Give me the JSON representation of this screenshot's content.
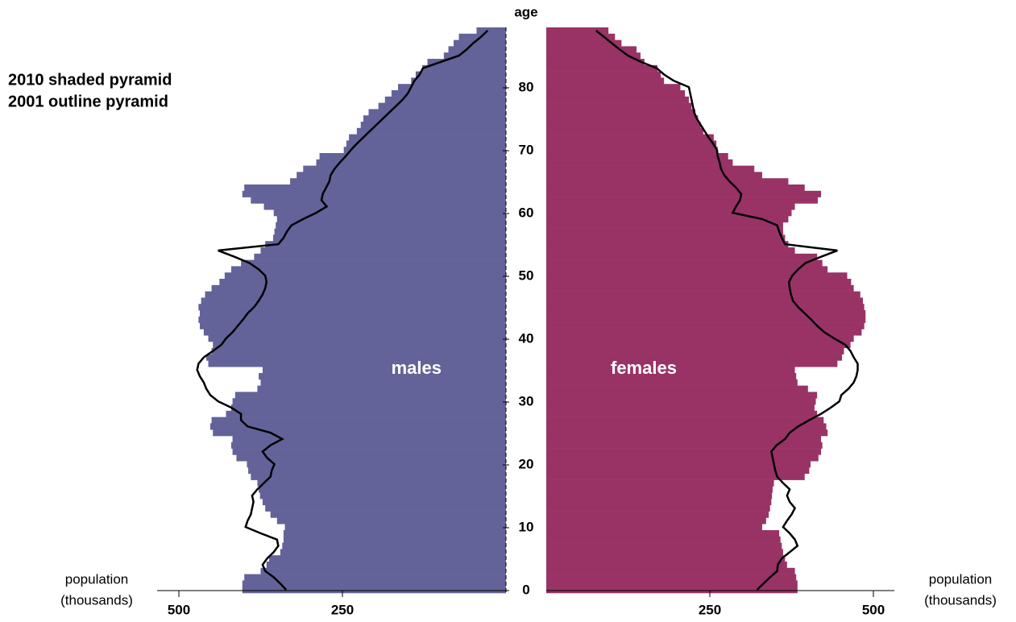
{
  "chart_data": {
    "type": "pyramid",
    "ylabel": "age",
    "legend": [
      "2010 shaded pyramid",
      "2001 outline pyramid"
    ],
    "xlabel_lines": [
      "population",
      "(thousands)"
    ],
    "ages": [
      0,
      1,
      2,
      3,
      4,
      5,
      6,
      7,
      8,
      9,
      10,
      11,
      12,
      13,
      14,
      15,
      16,
      17,
      18,
      19,
      20,
      21,
      22,
      23,
      24,
      25,
      26,
      27,
      28,
      29,
      30,
      31,
      32,
      33,
      34,
      35,
      36,
      37,
      38,
      39,
      40,
      41,
      42,
      43,
      44,
      45,
      46,
      47,
      48,
      49,
      50,
      51,
      52,
      53,
      54,
      55,
      56,
      57,
      58,
      59,
      60,
      61,
      62,
      63,
      64,
      65,
      66,
      67,
      68,
      69,
      70,
      71,
      72,
      73,
      74,
      75,
      76,
      77,
      78,
      79,
      80,
      81,
      82,
      83,
      84,
      85,
      86,
      87,
      88,
      89
    ],
    "ylim": [
      0,
      90
    ],
    "yticks": [
      0,
      10,
      20,
      30,
      40,
      50,
      60,
      70,
      80
    ],
    "xlim": [
      0,
      500
    ],
    "xticks": [
      250,
      500
    ],
    "series": [
      {
        "name": "males",
        "side": "left",
        "color": "#636399",
        "values": [
          403,
          403,
          400,
          375,
          366,
          362,
          345,
          342,
          340,
          340,
          338,
          350,
          360,
          368,
          372,
          376,
          378,
          380,
          390,
          394,
          396,
          412,
          418,
          420,
          418,
          448,
          452,
          450,
          428,
          420,
          418,
          414,
          380,
          375,
          378,
          372,
          455,
          458,
          450,
          448,
          455,
          462,
          468,
          470,
          468,
          470,
          466,
          460,
          450,
          438,
          430,
          420,
          405,
          385,
          375,
          368,
          356,
          354,
          352,
          350,
          355,
          370,
          390,
          403,
          400,
          330,
          320,
          310,
          290,
          285,
          248,
          244,
          240,
          228,
          222,
          218,
          210,
          195,
          185,
          175,
          165,
          145,
          138,
          128,
          120,
          95,
          88,
          80,
          72,
          45
        ],
        "outline": [
          336,
          345,
          355,
          368,
          372,
          365,
          355,
          348,
          350,
          375,
          398,
          395,
          390,
          388,
          386,
          388,
          380,
          370,
          360,
          358,
          354,
          365,
          372,
          360,
          342,
          360,
          395,
          405,
          405,
          420,
          440,
          452,
          458,
          462,
          468,
          472,
          470,
          462,
          448,
          435,
          428,
          418,
          410,
          402,
          395,
          385,
          378,
          372,
          368,
          366,
          368,
          378,
          392,
          415,
          440,
          348,
          340,
          335,
          328,
          310,
          290,
          274,
          282,
          280,
          275,
          270,
          268,
          262,
          254,
          245,
          237,
          228,
          218,
          208,
          198,
          188,
          178,
          168,
          158,
          150,
          145,
          140,
          132,
          127,
          100,
          72,
          60,
          50,
          38,
          28
        ]
      },
      {
        "name": "females",
        "side": "right",
        "color": "#993366",
        "values": [
          384,
          384,
          382,
          380,
          368,
          365,
          362,
          360,
          358,
          356,
          330,
          336,
          340,
          342,
          344,
          345,
          346,
          348,
          395,
          402,
          404,
          416,
          420,
          422,
          420,
          430,
          428,
          424,
          414,
          410,
          412,
          414,
          400,
          384,
          382,
          380,
          445,
          452,
          455,
          465,
          470,
          482,
          486,
          488,
          488,
          486,
          484,
          480,
          470,
          466,
          460,
          430,
          422,
          414,
          380,
          370,
          365,
          362,
          362,
          370,
          375,
          380,
          415,
          420,
          395,
          370,
          330,
          318,
          285,
          278,
          262,
          260,
          256,
          240,
          236,
          232,
          228,
          222,
          218,
          212,
          205,
          180,
          175,
          170,
          150,
          144,
          138,
          115,
          105,
          95
        ],
        "outline": [
          322,
          332,
          342,
          353,
          354,
          360,
          372,
          384,
          380,
          372,
          362,
          368,
          375,
          380,
          372,
          368,
          372,
          362,
          353,
          350,
          348,
          346,
          344,
          352,
          365,
          372,
          385,
          402,
          420,
          435,
          448,
          451,
          462,
          470,
          474,
          476,
          476,
          470,
          465,
          457,
          440,
          425,
          414,
          405,
          395,
          385,
          377,
          374,
          372,
          371,
          376,
          385,
          396,
          420,
          445,
          365,
          360,
          356,
          353,
          330,
          285,
          290,
          296,
          298,
          290,
          280,
          272,
          267,
          265,
          262,
          261,
          255,
          248,
          242,
          236,
          230,
          226,
          224,
          222,
          220,
          218,
          195,
          180,
          169,
          145,
          125,
          112,
          100,
          88,
          76
        ]
      }
    ]
  }
}
